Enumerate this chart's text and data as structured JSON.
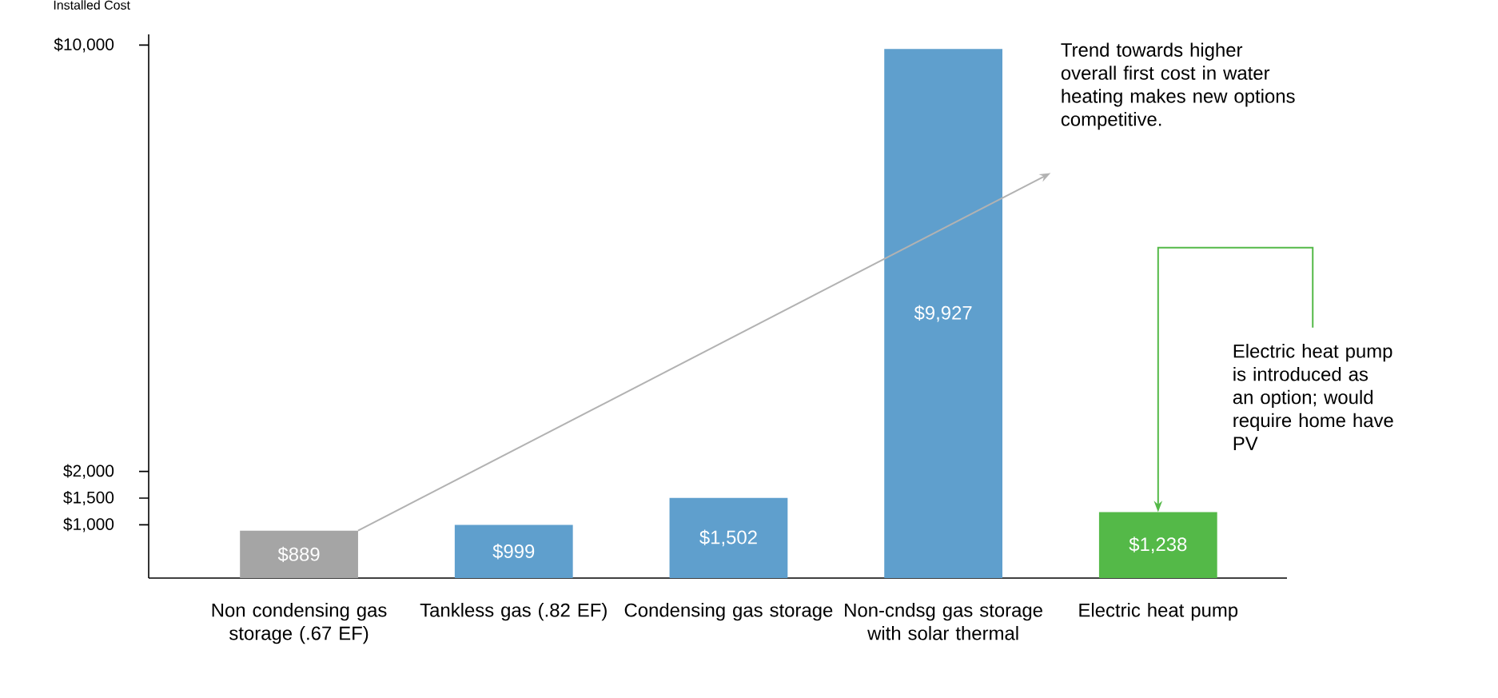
{
  "chart_data": {
    "type": "bar",
    "ylabel": "Installed Cost",
    "categories": [
      "Non condensing gas storage (.67 EF)",
      "Tankless gas (.82 EF)",
      "Condensing gas storage",
      "Non-cndsg gas storage with solar thermal",
      "Electric heat pump"
    ],
    "values": [
      889,
      999,
      1502,
      9927,
      1238
    ],
    "colors": [
      "#a5a5a5",
      "#5f9fcd",
      "#5f9fcd",
      "#5f9fcd",
      "#54b948"
    ],
    "value_labels": [
      "$889",
      "$999",
      "$1,502",
      "$9,927",
      "$1,238"
    ],
    "ylim": [
      0,
      10200
    ],
    "yticks": [
      {
        "value": 1000,
        "label": "$1,000"
      },
      {
        "value": 1500,
        "label": "$1,500"
      },
      {
        "value": 2000,
        "label": "$2,000"
      },
      {
        "value": 10000,
        "label": "$10,000"
      }
    ],
    "annotations": [
      "Trend towards higher overall first cost in water heating makes new options competitive.",
      {
        "text": "Electric heat pump is introduced as an option; would require home have PV",
        "x": "Electric heat pump",
        "y": 1238
      }
    ]
  }
}
